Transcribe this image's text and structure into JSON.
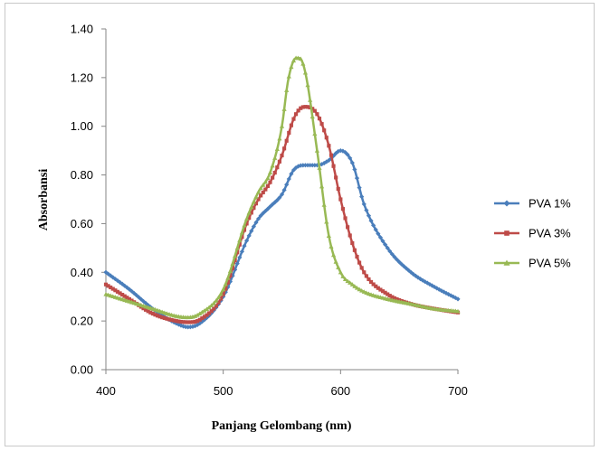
{
  "chart_data": {
    "type": "line",
    "title": "",
    "xlabel": "Panjang Gelombang (nm)",
    "ylabel": "Absorbansi",
    "xlim": [
      400,
      700
    ],
    "ylim": [
      0,
      1.4
    ],
    "xticks": [
      "400",
      "500",
      "600",
      "700"
    ],
    "xtick_values": [
      400,
      500,
      600,
      700
    ],
    "yticks": [
      "0.00",
      "0.20",
      "0.40",
      "0.60",
      "0.80",
      "1.00",
      "1.20",
      "1.40"
    ],
    "ytick_values": [
      0,
      0.2,
      0.4,
      0.6,
      0.8,
      1.0,
      1.2,
      1.4
    ],
    "grid": false,
    "legend_position": "right",
    "series": [
      {
        "name": "PVA 1%",
        "color": "#4a7ebb",
        "marker": "diamond",
        "x": [
          400,
          420,
          440,
          460,
          470,
          480,
          500,
          520,
          530,
          540,
          550,
          560,
          570,
          580,
          590,
          600,
          610,
          620,
          640,
          660,
          680,
          700
        ],
        "y": [
          0.4,
          0.33,
          0.25,
          0.19,
          0.175,
          0.19,
          0.3,
          0.53,
          0.62,
          0.67,
          0.72,
          0.82,
          0.84,
          0.84,
          0.86,
          0.9,
          0.85,
          0.68,
          0.5,
          0.4,
          0.34,
          0.29
        ]
      },
      {
        "name": "PVA 3%",
        "color": "#be4b48",
        "marker": "square",
        "x": [
          400,
          420,
          440,
          460,
          470,
          480,
          500,
          520,
          530,
          540,
          550,
          560,
          565,
          570,
          580,
          590,
          600,
          610,
          620,
          640,
          660,
          680,
          700
        ],
        "y": [
          0.35,
          0.29,
          0.23,
          0.2,
          0.195,
          0.205,
          0.31,
          0.6,
          0.7,
          0.77,
          0.88,
          1.03,
          1.07,
          1.08,
          1.05,
          0.92,
          0.7,
          0.52,
          0.4,
          0.31,
          0.27,
          0.25,
          0.235
        ]
      },
      {
        "name": "PVA 5%",
        "color": "#98b954",
        "marker": "triangle",
        "x": [
          400,
          420,
          440,
          460,
          470,
          480,
          500,
          520,
          530,
          540,
          550,
          555,
          560,
          565,
          570,
          580,
          590,
          600,
          610,
          620,
          640,
          660,
          680,
          700
        ],
        "y": [
          0.31,
          0.28,
          0.25,
          0.22,
          0.215,
          0.23,
          0.33,
          0.62,
          0.73,
          0.81,
          1.0,
          1.18,
          1.27,
          1.28,
          1.22,
          0.9,
          0.55,
          0.4,
          0.35,
          0.32,
          0.29,
          0.27,
          0.25,
          0.24
        ]
      }
    ]
  }
}
